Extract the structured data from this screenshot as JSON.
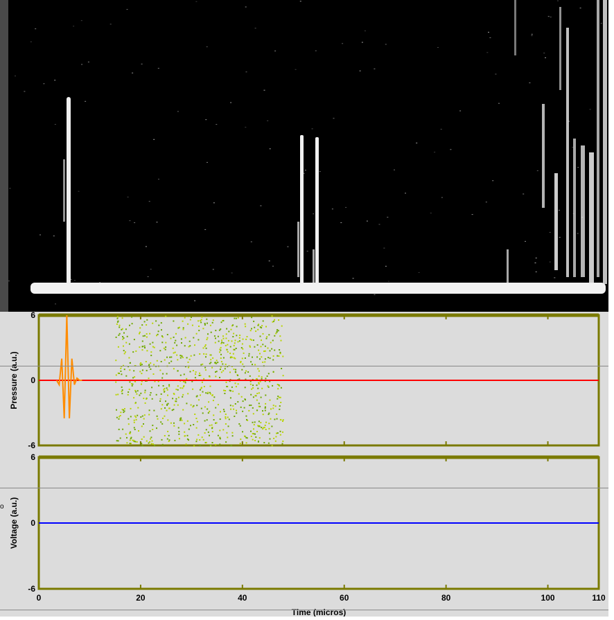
{
  "chart_data": [
    {
      "type": "line",
      "panel": "top",
      "ylabel": "Pressure (a.u.)",
      "xlim": [
        0,
        110
      ],
      "ylim": [
        -6,
        6
      ],
      "yticks": [
        -6,
        0,
        6
      ],
      "series": [
        {
          "color": "#ff0000",
          "x": [
            0,
            110
          ],
          "y": [
            0,
            0
          ]
        },
        {
          "color": "#ff8c00",
          "x": [
            3.5,
            4.0,
            4.5,
            5.0,
            5.5,
            6.0,
            6.5,
            7.0,
            7.5,
            8.0,
            8.5
          ],
          "y": [
            0,
            -0.4,
            2.0,
            -3.5,
            6.0,
            -3.5,
            2.0,
            -0.4,
            0.2,
            0,
            0
          ]
        }
      ],
      "scatter_region": {
        "color": "#b8d400",
        "x_range": [
          15,
          48
        ],
        "y_range": [
          -6,
          6
        ]
      }
    },
    {
      "type": "line",
      "panel": "bottom",
      "ylabel": "Voltage (a.u.)",
      "xlabel": "Time (micros)",
      "xlim": [
        0,
        110
      ],
      "ylim": [
        -6,
        6
      ],
      "yticks": [
        -6,
        0,
        6
      ],
      "xticks": [
        0,
        20,
        40,
        60,
        80,
        100,
        110
      ],
      "series": [
        {
          "color": "#0000ff",
          "x": [
            0,
            110
          ],
          "y": [
            0,
            0
          ]
        }
      ]
    }
  ],
  "colors": {
    "axes": "#7a7a00",
    "panel_bg": "#dcdcdc",
    "image_bg": "#000000"
  },
  "labels": {
    "stray_mark": "o"
  }
}
